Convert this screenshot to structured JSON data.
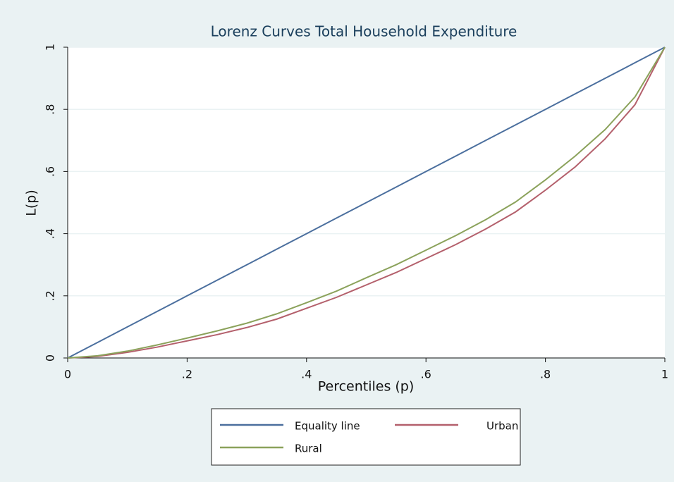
{
  "chart_data": {
    "type": "line",
    "title": "Lorenz Curves Total Household Expenditure",
    "xlabel": "Percentiles (p)",
    "ylabel": "L(p)",
    "x": [
      0,
      0.05,
      0.1,
      0.15,
      0.2,
      0.25,
      0.3,
      0.35,
      0.4,
      0.45,
      0.5,
      0.55,
      0.6,
      0.65,
      0.7,
      0.75,
      0.8,
      0.85,
      0.9,
      0.95,
      1
    ],
    "series": [
      {
        "name": "Equality line",
        "color": "#4b6f9e",
        "values": [
          0,
          0.05,
          0.1,
          0.15,
          0.2,
          0.25,
          0.3,
          0.35,
          0.4,
          0.45,
          0.5,
          0.55,
          0.6,
          0.65,
          0.7,
          0.75,
          0.8,
          0.85,
          0.9,
          0.95,
          1
        ]
      },
      {
        "name": "Urban",
        "color": "#b4606c",
        "values": [
          0,
          0.005,
          0.018,
          0.035,
          0.055,
          0.075,
          0.098,
          0.125,
          0.16,
          0.195,
          0.235,
          0.275,
          0.32,
          0.365,
          0.415,
          0.47,
          0.54,
          0.615,
          0.705,
          0.815,
          1
        ]
      },
      {
        "name": "Rural",
        "color": "#8ba25b",
        "values": [
          0,
          0.007,
          0.022,
          0.042,
          0.064,
          0.087,
          0.112,
          0.142,
          0.178,
          0.215,
          0.258,
          0.3,
          0.347,
          0.394,
          0.445,
          0.502,
          0.573,
          0.65,
          0.735,
          0.84,
          1
        ]
      }
    ],
    "xlim": [
      0,
      1
    ],
    "ylim": [
      0,
      1
    ],
    "xticks": [
      0,
      {
        "value": 0.2,
        "label": ".2"
      },
      {
        "value": 0.4,
        "label": ".4"
      },
      {
        "value": 0.6,
        "label": ".6"
      },
      {
        "value": 0.8,
        "label": ".8"
      },
      1
    ],
    "yticks": [
      0,
      {
        "value": 0.2,
        "label": ".2"
      },
      {
        "value": 0.4,
        "label": ".4"
      },
      {
        "value": 0.6,
        "label": ".6"
      },
      {
        "value": 0.8,
        "label": ".8"
      },
      1
    ],
    "grid": true
  }
}
